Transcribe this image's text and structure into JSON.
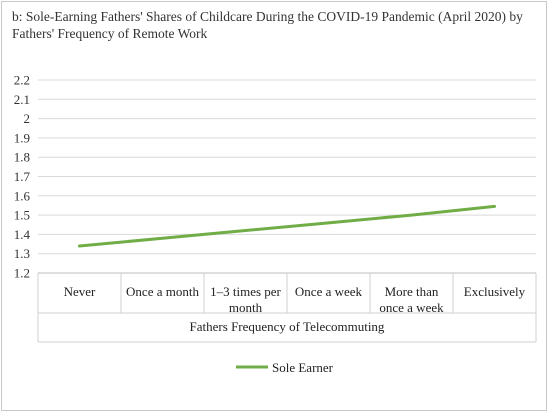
{
  "chart_data": {
    "type": "line",
    "title": "b: Sole-Earning Fathers' Shares of Childcare During the COVID-19 Pandemic (April 2020) by Fathers' Frequency of Remote Work",
    "categories": [
      "Never",
      "Once a month",
      "1–3 times per month",
      "Once a week",
      "More than once a week",
      "Exclusively"
    ],
    "category_lines": [
      [
        "Never"
      ],
      [
        "Once a month"
      ],
      [
        "1–3 times per",
        "month"
      ],
      [
        "Once a week"
      ],
      [
        "More than",
        "once a week"
      ],
      [
        "Exclusively"
      ]
    ],
    "series": [
      {
        "name": "Sole Earner",
        "values": [
          1.34,
          1.38,
          1.42,
          1.46,
          1.5,
          1.545
        ],
        "color": "#70ad47"
      }
    ],
    "xlabel": "Fathers Frequency of Telecommuting",
    "ylabel": "",
    "ylim": [
      1.2,
      2.2
    ],
    "yticks": [
      "1.2",
      "1.3",
      "1.4",
      "1.5",
      "1.6",
      "1.7",
      "1.8",
      "1.9",
      "2",
      "2.1",
      "2.2"
    ],
    "grid": true,
    "legend": "bottom"
  }
}
